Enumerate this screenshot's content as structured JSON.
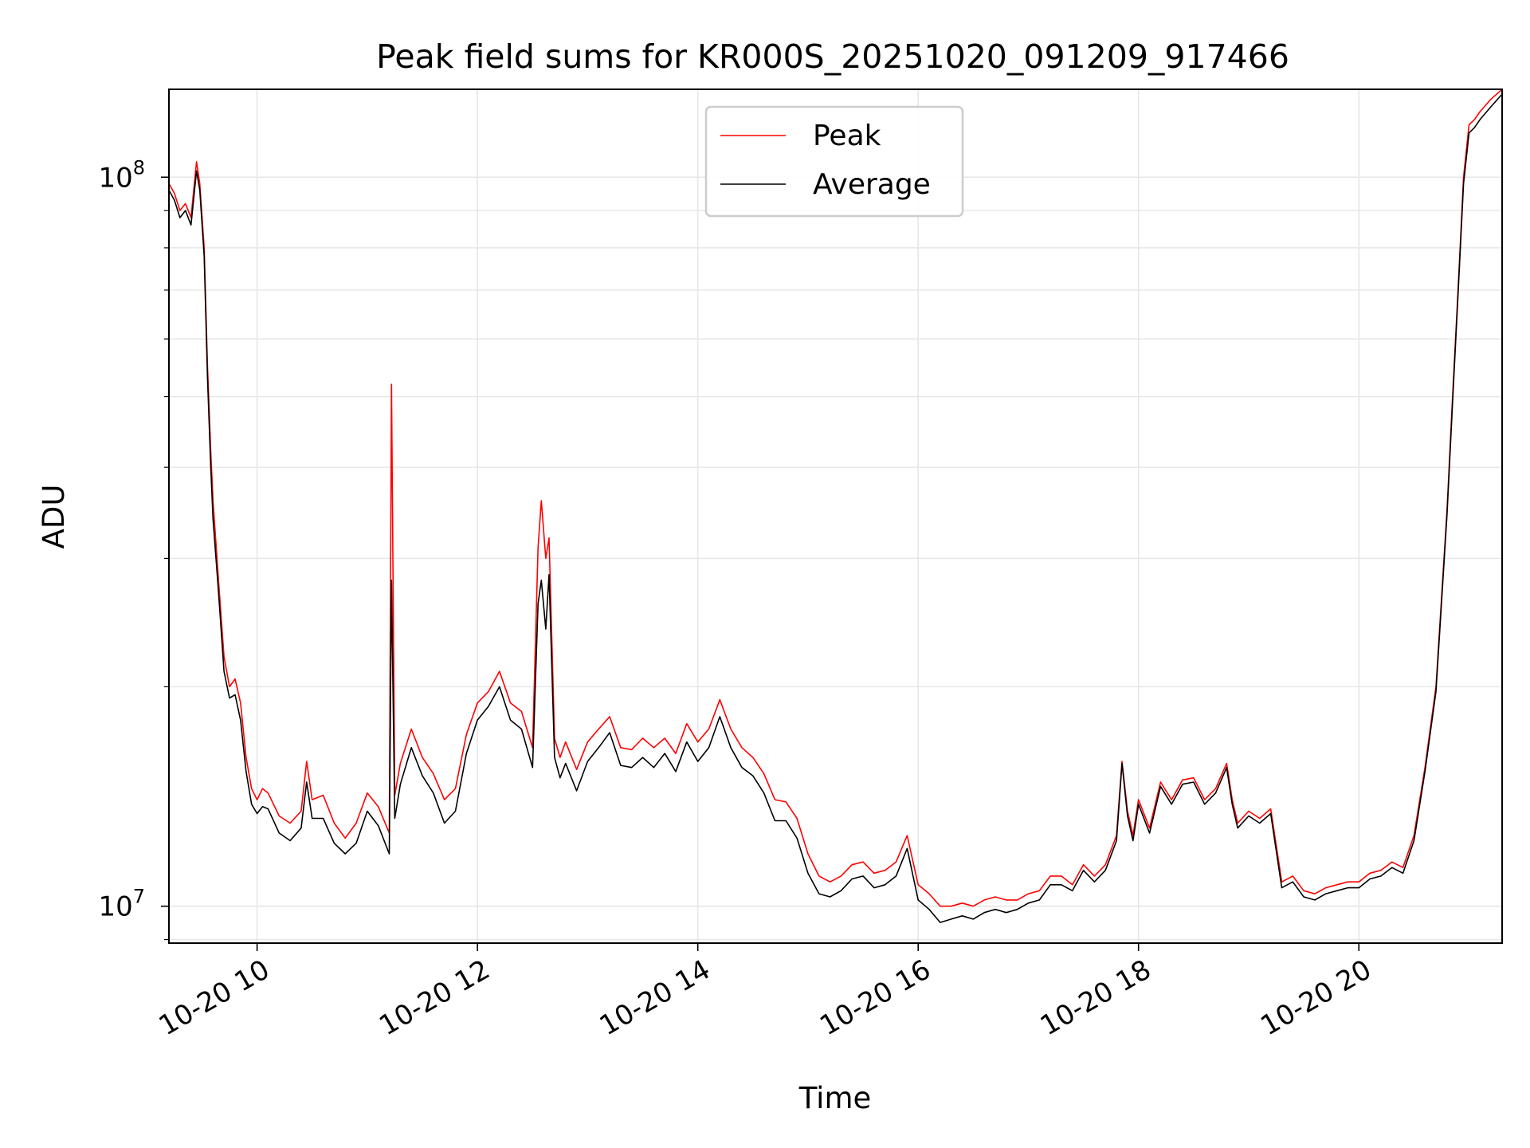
{
  "chart_data": {
    "type": "line",
    "title": "Peak field sums for KR000S_20251020_091209_917466",
    "xlabel": "Time",
    "ylabel": "ADU",
    "yscale": "log",
    "xlim": [
      9.2,
      21.3
    ],
    "ylim": [
      8900000,
      132000000
    ],
    "grid": true,
    "legend_position": "top-center",
    "x_ticks": [
      {
        "value": 10,
        "label": "10-20 10"
      },
      {
        "value": 12,
        "label": "10-20 12"
      },
      {
        "value": 14,
        "label": "10-20 14"
      },
      {
        "value": 16,
        "label": "10-20 16"
      },
      {
        "value": 18,
        "label": "10-20 18"
      },
      {
        "value": 20,
        "label": "10-20 20"
      }
    ],
    "y_ticks": [
      {
        "value": 10000000,
        "base": "10",
        "exp": "7"
      },
      {
        "value": 100000000,
        "base": "10",
        "exp": "8"
      }
    ],
    "x_units": "hours on 2025-10-20",
    "series": [
      {
        "name": "Peak",
        "color": "#ff0000",
        "x": [
          9.2,
          9.25,
          9.3,
          9.35,
          9.4,
          9.45,
          9.48,
          9.52,
          9.55,
          9.58,
          9.6,
          9.65,
          9.7,
          9.75,
          9.8,
          9.85,
          9.9,
          9.95,
          10.0,
          10.05,
          10.1,
          10.2,
          10.3,
          10.4,
          10.45,
          10.5,
          10.6,
          10.7,
          10.8,
          10.9,
          11.0,
          11.1,
          11.2,
          11.22,
          11.25,
          11.3,
          11.4,
          11.5,
          11.6,
          11.7,
          11.8,
          11.9,
          12.0,
          12.1,
          12.2,
          12.3,
          12.4,
          12.5,
          12.55,
          12.58,
          12.62,
          12.65,
          12.7,
          12.75,
          12.8,
          12.9,
          13.0,
          13.1,
          13.2,
          13.3,
          13.4,
          13.5,
          13.6,
          13.7,
          13.8,
          13.9,
          14.0,
          14.1,
          14.2,
          14.3,
          14.4,
          14.5,
          14.6,
          14.7,
          14.8,
          14.9,
          15.0,
          15.1,
          15.2,
          15.3,
          15.4,
          15.5,
          15.6,
          15.7,
          15.8,
          15.9,
          16.0,
          16.1,
          16.2,
          16.3,
          16.4,
          16.5,
          16.6,
          16.7,
          16.8,
          16.9,
          17.0,
          17.1,
          17.2,
          17.3,
          17.4,
          17.5,
          17.6,
          17.7,
          17.8,
          17.85,
          17.9,
          17.95,
          18.0,
          18.1,
          18.2,
          18.3,
          18.4,
          18.5,
          18.6,
          18.7,
          18.8,
          18.85,
          18.9,
          19.0,
          19.1,
          19.2,
          19.3,
          19.4,
          19.5,
          19.6,
          19.7,
          19.8,
          19.9,
          20.0,
          20.1,
          20.2,
          20.3,
          20.4,
          20.5,
          20.6,
          20.7,
          20.8,
          20.85,
          20.9,
          20.95,
          21.0,
          21.05,
          21.1,
          21.2,
          21.3
        ],
        "y": [
          98000000,
          95000000,
          90000000,
          92000000,
          88000000,
          105000000,
          98000000,
          80000000,
          55000000,
          42000000,
          36000000,
          28000000,
          22000000,
          20000000,
          20500000,
          19000000,
          16000000,
          14500000,
          14000000,
          14500000,
          14300000,
          13300000,
          13000000,
          13500000,
          15800000,
          14000000,
          14200000,
          13000000,
          12400000,
          13000000,
          14300000,
          13700000,
          12600000,
          52000000,
          14200000,
          15700000,
          17500000,
          16000000,
          15200000,
          14000000,
          14500000,
          17200000,
          19000000,
          19700000,
          21000000,
          19000000,
          18500000,
          16500000,
          31000000,
          36000000,
          30000000,
          32000000,
          17000000,
          16000000,
          16800000,
          15400000,
          16800000,
          17500000,
          18200000,
          16500000,
          16400000,
          17000000,
          16500000,
          17000000,
          16200000,
          17800000,
          16800000,
          17500000,
          19200000,
          17500000,
          16500000,
          16000000,
          15200000,
          14000000,
          13900000,
          13200000,
          11800000,
          11000000,
          10800000,
          11000000,
          11400000,
          11500000,
          11100000,
          11200000,
          11500000,
          12500000,
          10700000,
          10400000,
          10000000,
          10000000,
          10100000,
          10000000,
          10200000,
          10300000,
          10200000,
          10200000,
          10400000,
          10500000,
          11000000,
          11000000,
          10700000,
          11400000,
          11000000,
          11400000,
          12500000,
          15800000,
          13500000,
          12500000,
          14000000,
          12800000,
          14800000,
          14000000,
          14900000,
          15000000,
          14000000,
          14500000,
          15700000,
          14000000,
          13000000,
          13500000,
          13200000,
          13600000,
          10800000,
          11000000,
          10500000,
          10400000,
          10600000,
          10700000,
          10800000,
          10800000,
          11100000,
          11200000,
          11500000,
          11300000,
          12500000,
          15500000,
          20000000,
          35000000,
          50000000,
          70000000,
          100000000,
          118000000,
          120000000,
          123000000,
          128000000,
          132000000
        ]
      },
      {
        "name": "Average",
        "color": "#000000",
        "x": [
          9.2,
          9.25,
          9.3,
          9.35,
          9.4,
          9.45,
          9.48,
          9.52,
          9.55,
          9.58,
          9.6,
          9.65,
          9.7,
          9.75,
          9.8,
          9.85,
          9.9,
          9.95,
          10.0,
          10.05,
          10.1,
          10.2,
          10.3,
          10.4,
          10.45,
          10.5,
          10.6,
          10.7,
          10.8,
          10.9,
          11.0,
          11.1,
          11.2,
          11.22,
          11.25,
          11.3,
          11.4,
          11.5,
          11.6,
          11.7,
          11.8,
          11.9,
          12.0,
          12.1,
          12.2,
          12.3,
          12.4,
          12.5,
          12.55,
          12.58,
          12.62,
          12.65,
          12.7,
          12.75,
          12.8,
          12.9,
          13.0,
          13.1,
          13.2,
          13.3,
          13.4,
          13.5,
          13.6,
          13.7,
          13.8,
          13.9,
          14.0,
          14.1,
          14.2,
          14.3,
          14.4,
          14.5,
          14.6,
          14.7,
          14.8,
          14.9,
          15.0,
          15.1,
          15.2,
          15.3,
          15.4,
          15.5,
          15.6,
          15.7,
          15.8,
          15.9,
          16.0,
          16.1,
          16.2,
          16.3,
          16.4,
          16.5,
          16.6,
          16.7,
          16.8,
          16.9,
          17.0,
          17.1,
          17.2,
          17.3,
          17.4,
          17.5,
          17.6,
          17.7,
          17.8,
          17.85,
          17.9,
          17.95,
          18.0,
          18.1,
          18.2,
          18.3,
          18.4,
          18.5,
          18.6,
          18.7,
          18.8,
          18.85,
          18.9,
          19.0,
          19.1,
          19.2,
          19.3,
          19.4,
          19.5,
          19.6,
          19.7,
          19.8,
          19.9,
          20.0,
          20.1,
          20.2,
          20.3,
          20.4,
          20.5,
          20.6,
          20.7,
          20.8,
          20.85,
          20.9,
          20.95,
          21.0,
          21.05,
          21.1,
          21.2,
          21.3
        ],
        "y": [
          96000000,
          93000000,
          88000000,
          90000000,
          86000000,
          102000000,
          96000000,
          78000000,
          53000000,
          40000000,
          34000000,
          27000000,
          21000000,
          19300000,
          19500000,
          18000000,
          15300000,
          13800000,
          13400000,
          13700000,
          13600000,
          12600000,
          12300000,
          12800000,
          14800000,
          13200000,
          13200000,
          12200000,
          11800000,
          12200000,
          13500000,
          12900000,
          11800000,
          28000000,
          13200000,
          14700000,
          16500000,
          15100000,
          14300000,
          13000000,
          13500000,
          16200000,
          18000000,
          18800000,
          20000000,
          18000000,
          17500000,
          15500000,
          26000000,
          28000000,
          24000000,
          28500000,
          16000000,
          15000000,
          15700000,
          14400000,
          15800000,
          16500000,
          17300000,
          15600000,
          15500000,
          16000000,
          15500000,
          16200000,
          15300000,
          16800000,
          15800000,
          16500000,
          18200000,
          16500000,
          15500000,
          15100000,
          14300000,
          13100000,
          13100000,
          12400000,
          11100000,
          10400000,
          10300000,
          10500000,
          10900000,
          11000000,
          10600000,
          10700000,
          11000000,
          12000000,
          10200000,
          9900000,
          9500000,
          9600000,
          9700000,
          9600000,
          9800000,
          9900000,
          9800000,
          9900000,
          10100000,
          10200000,
          10700000,
          10700000,
          10500000,
          11200000,
          10800000,
          11200000,
          12300000,
          15700000,
          13300000,
          12300000,
          13800000,
          12600000,
          14600000,
          13800000,
          14700000,
          14800000,
          13800000,
          14300000,
          15500000,
          13800000,
          12800000,
          13300000,
          13000000,
          13400000,
          10600000,
          10800000,
          10300000,
          10200000,
          10400000,
          10500000,
          10600000,
          10600000,
          10900000,
          11000000,
          11300000,
          11100000,
          12300000,
          15300000,
          19700000,
          34500000,
          49000000,
          69000000,
          98000000,
          115000000,
          117000000,
          120000000,
          125000000,
          130000000
        ]
      }
    ]
  }
}
